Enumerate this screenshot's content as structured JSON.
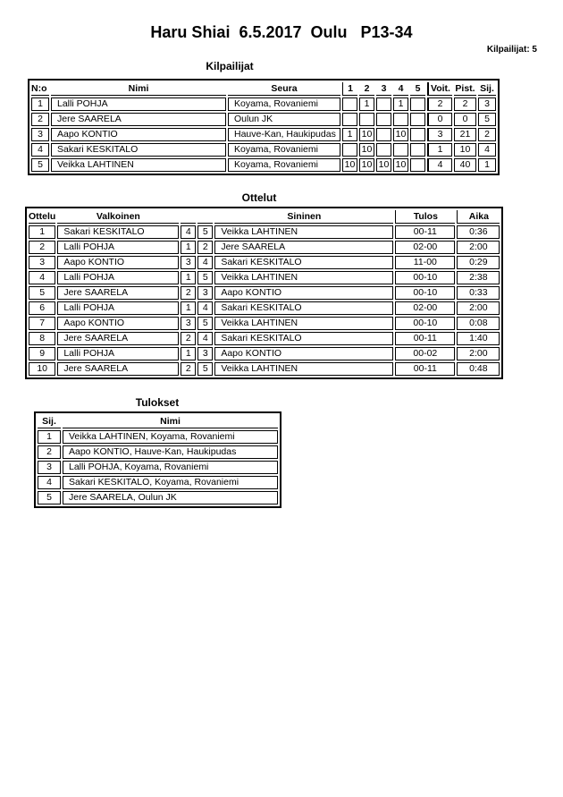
{
  "page": {
    "title": "Haru Shiai  6.5.2017  Oulu   P13-34",
    "competitors_count": "Kilpailijat: 5"
  },
  "competitors": {
    "heading": "Kilpailijat",
    "headers": {
      "no": "N:o",
      "name": "Nimi",
      "club": "Seura",
      "rounds": [
        "1",
        "2",
        "3",
        "4",
        "5"
      ],
      "wins": "Voit.",
      "points": "Pist.",
      "place": "Sij."
    },
    "rows": [
      {
        "no": "1",
        "name": "Lalli POHJA",
        "club": "Koyama, Rovaniemi",
        "scores": [
          "",
          "1",
          "",
          "1",
          ""
        ],
        "wins": "2",
        "points": "2",
        "place": "3"
      },
      {
        "no": "2",
        "name": "Jere SAARELA",
        "club": "Oulun JK",
        "scores": [
          "",
          "",
          "",
          "",
          ""
        ],
        "wins": "0",
        "points": "0",
        "place": "5"
      },
      {
        "no": "3",
        "name": "Aapo KONTIO",
        "club": "Hauve-Kan, Haukipudas",
        "scores": [
          "1",
          "10",
          "",
          "10",
          ""
        ],
        "wins": "3",
        "points": "21",
        "place": "2"
      },
      {
        "no": "4",
        "name": "Sakari KESKITALO",
        "club": "Koyama, Rovaniemi",
        "scores": [
          "",
          "10",
          "",
          "",
          ""
        ],
        "wins": "1",
        "points": "10",
        "place": "4"
      },
      {
        "no": "5",
        "name": "Veikka LAHTINEN",
        "club": "Koyama, Rovaniemi",
        "scores": [
          "10",
          "10",
          "10",
          "10",
          ""
        ],
        "wins": "4",
        "points": "40",
        "place": "1"
      }
    ]
  },
  "matches": {
    "heading": "Ottelut",
    "headers": {
      "match": "Ottelu",
      "white": "Valkoinen",
      "blue": "Sininen",
      "result": "Tulos",
      "time": "Aika"
    },
    "rows": [
      {
        "no": "1",
        "white": "Sakari KESKITALO",
        "white_no": "4",
        "blue_no": "5",
        "blue": "Veikka LAHTINEN",
        "result": "00-11",
        "time": "0:36"
      },
      {
        "no": "2",
        "white": "Lalli POHJA",
        "white_no": "1",
        "blue_no": "2",
        "blue": "Jere SAARELA",
        "result": "02-00",
        "time": "2:00"
      },
      {
        "no": "3",
        "white": "Aapo KONTIO",
        "white_no": "3",
        "blue_no": "4",
        "blue": "Sakari KESKITALO",
        "result": "11-00",
        "time": "0:29"
      },
      {
        "no": "4",
        "white": "Lalli POHJA",
        "white_no": "1",
        "blue_no": "5",
        "blue": "Veikka LAHTINEN",
        "result": "00-10",
        "time": "2:38"
      },
      {
        "no": "5",
        "white": "Jere SAARELA",
        "white_no": "2",
        "blue_no": "3",
        "blue": "Aapo KONTIO",
        "result": "00-10",
        "time": "0:33"
      },
      {
        "no": "6",
        "white": "Lalli POHJA",
        "white_no": "1",
        "blue_no": "4",
        "blue": "Sakari KESKITALO",
        "result": "02-00",
        "time": "2:00"
      },
      {
        "no": "7",
        "white": "Aapo KONTIO",
        "white_no": "3",
        "blue_no": "5",
        "blue": "Veikka LAHTINEN",
        "result": "00-10",
        "time": "0:08"
      },
      {
        "no": "8",
        "white": "Jere SAARELA",
        "white_no": "2",
        "blue_no": "4",
        "blue": "Sakari KESKITALO",
        "result": "00-11",
        "time": "1:40"
      },
      {
        "no": "9",
        "white": "Lalli POHJA",
        "white_no": "1",
        "blue_no": "3",
        "blue": "Aapo KONTIO",
        "result": "00-02",
        "time": "2:00"
      },
      {
        "no": "10",
        "white": "Jere SAARELA",
        "white_no": "2",
        "blue_no": "5",
        "blue": "Veikka LAHTINEN",
        "result": "00-11",
        "time": "0:48"
      }
    ]
  },
  "results": {
    "heading": "Tulokset",
    "headers": {
      "place": "Sij.",
      "name": "Nimi"
    },
    "rows": [
      {
        "place": "1",
        "name": "Veikka LAHTINEN, Koyama, Rovaniemi"
      },
      {
        "place": "2",
        "name": "Aapo KONTIO, Hauve-Kan, Haukipudas"
      },
      {
        "place": "3",
        "name": "Lalli POHJA, Koyama, Rovaniemi"
      },
      {
        "place": "4",
        "name": "Sakari KESKITALO, Koyama, Rovaniemi"
      },
      {
        "place": "5",
        "name": "Jere SAARELA, Oulun JK"
      }
    ]
  },
  "colors": {
    "text": "#000000",
    "border": "#000000",
    "background": "#ffffff"
  }
}
